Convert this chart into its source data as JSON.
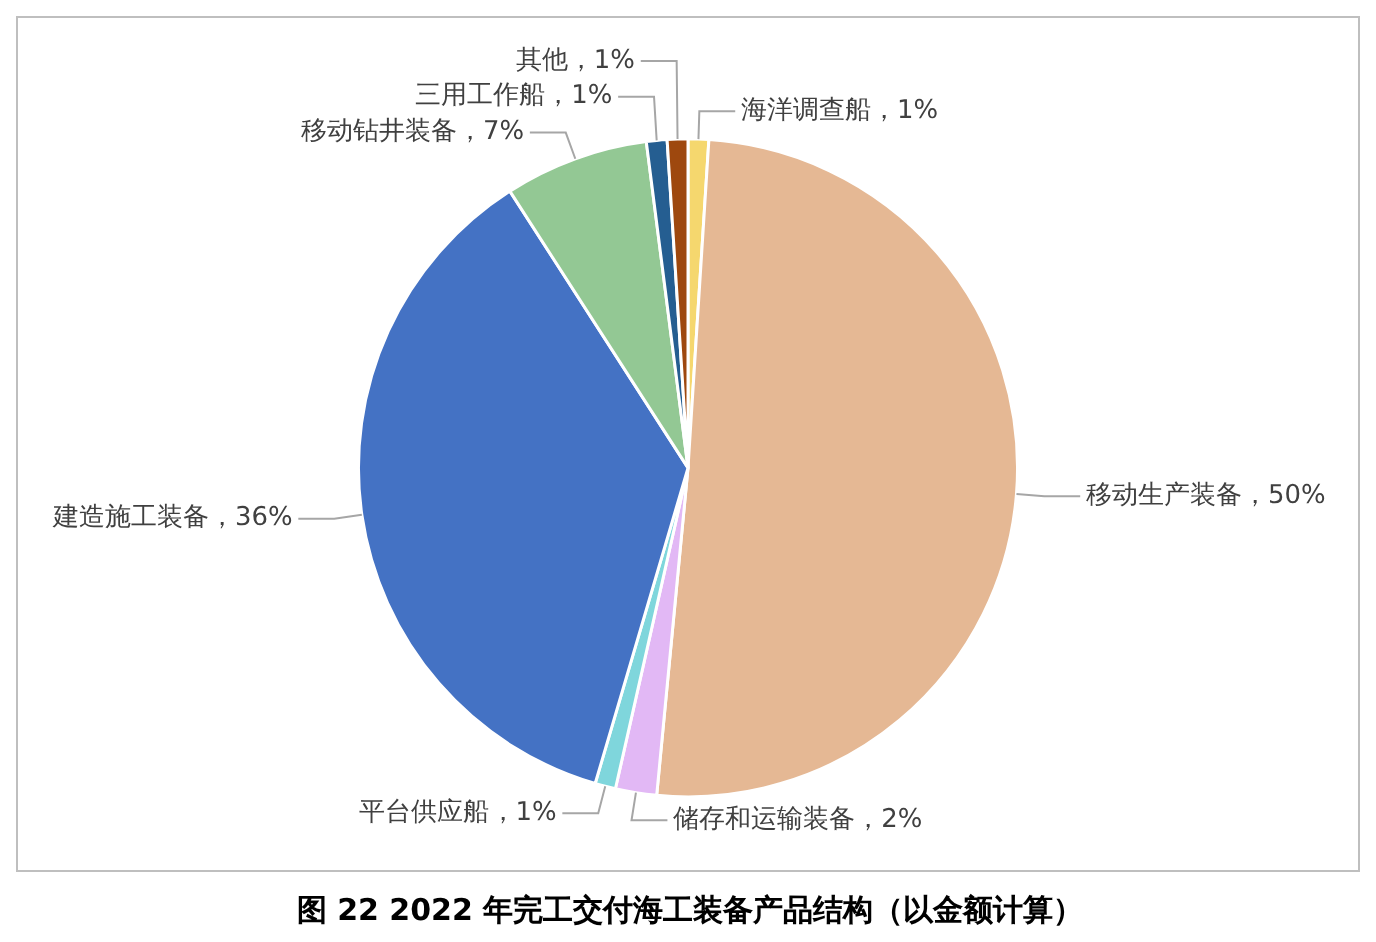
{
  "chart_data": {
    "type": "pie",
    "title": "图  22 2022 年完工交付海工装备产品结构（以金额计算）",
    "categories": [
      "海洋调查船",
      "移动生产装备",
      "储存和运输装备",
      "平台供应船",
      "建造施工装备",
      "移动钻井装备",
      "三用工作船",
      "其他"
    ],
    "values": [
      1,
      50,
      2,
      1,
      36,
      7,
      1,
      1
    ],
    "value_labels": [
      "1%",
      "50%",
      "2%",
      "1%",
      "36%",
      "7%",
      "1%",
      "1%"
    ],
    "colors": [
      "#f5d76e",
      "#e5b894",
      "#e2b8f5",
      "#7fd6dc",
      "#4472c4",
      "#93c894",
      "#255e91",
      "#9e480e"
    ],
    "legend": false
  }
}
